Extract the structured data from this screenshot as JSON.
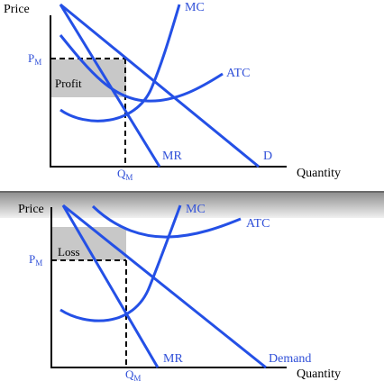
{
  "colors": {
    "curve": "#2450e6",
    "axis": "#000000",
    "shade": "#c8c8c8",
    "label_blue": "#3050d8",
    "background": "#ffffff",
    "divider_dark": "#7a7a7a",
    "divider_light": "#e8e8e8"
  },
  "top_panel": {
    "y_axis_label": "Price",
    "x_axis_label": "Quantity",
    "price_tick": "P",
    "price_tick_sub": "M",
    "quantity_tick": "Q",
    "quantity_tick_sub": "M",
    "area_label": "Profit",
    "curves": {
      "mc": "MC",
      "atc": "ATC",
      "mr": "MR",
      "demand": "D"
    }
  },
  "bottom_panel": {
    "y_axis_label": "Price",
    "x_axis_label": "Quantity",
    "price_tick": "P",
    "price_tick_sub": "M",
    "quantity_tick": "Q",
    "quantity_tick_sub": "M",
    "area_label": "Loss",
    "curves": {
      "mc": "MC",
      "atc": "ATC",
      "mr": "MR",
      "demand": "Demand"
    }
  }
}
